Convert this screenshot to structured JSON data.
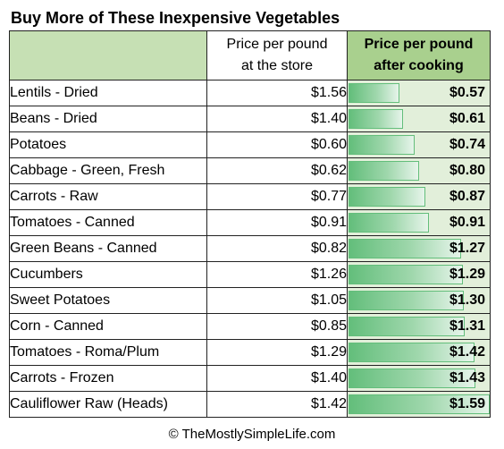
{
  "title": "Buy More of These Inexpensive Vegetables",
  "table": {
    "headers": {
      "item": "",
      "store_line1": "Price per pound",
      "store_line2": "at the store",
      "cooked_line1": "Price per pound",
      "cooked_line2": "after cooking"
    },
    "rows": [
      {
        "item": "Lentils - Dried",
        "store": "$1.56",
        "cooked": "$0.57",
        "cooked_value": 0.57
      },
      {
        "item": "Beans - Dried",
        "store": "$1.40",
        "cooked": "$0.61",
        "cooked_value": 0.61
      },
      {
        "item": "Potatoes",
        "store": "$0.60",
        "cooked": "$0.74",
        "cooked_value": 0.74
      },
      {
        "item": "Cabbage - Green, Fresh",
        "store": "$0.62",
        "cooked": "$0.80",
        "cooked_value": 0.8
      },
      {
        "item": "Carrots - Raw",
        "store": "$0.77",
        "cooked": "$0.87",
        "cooked_value": 0.87
      },
      {
        "item": "Tomatoes - Canned",
        "store": "$0.91",
        "cooked": "$0.91",
        "cooked_value": 0.91
      },
      {
        "item": "Green Beans - Canned",
        "store": "$0.82",
        "cooked": "$1.27",
        "cooked_value": 1.27
      },
      {
        "item": "Cucumbers",
        "store": "$1.26",
        "cooked": "$1.29",
        "cooked_value": 1.29
      },
      {
        "item": "Sweet Potatoes",
        "store": "$1.05",
        "cooked": "$1.30",
        "cooked_value": 1.3
      },
      {
        "item": "Corn - Canned",
        "store": "$0.85",
        "cooked": "$1.31",
        "cooked_value": 1.31
      },
      {
        "item": "Tomatoes - Roma/Plum",
        "store": "$1.29",
        "cooked": "$1.42",
        "cooked_value": 1.42
      },
      {
        "item": "Carrots - Frozen",
        "store": "$1.40",
        "cooked": "$1.43",
        "cooked_value": 1.43
      },
      {
        "item": "Cauliflower Raw (Heads)",
        "store": "$1.42",
        "cooked": "$1.59",
        "cooked_value": 1.59
      }
    ]
  },
  "footer": "© TheMostlySimpleLife.com",
  "colors": {
    "header_item_bg": "#c6e0b4",
    "header_cooked_bg": "#a9d08e",
    "cooked_cell_bg": "#e2efda",
    "data_bar": "#63be7b"
  }
}
